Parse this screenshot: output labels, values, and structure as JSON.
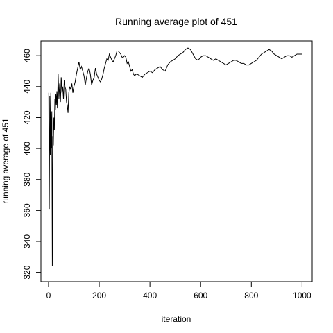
{
  "chart_data": {
    "type": "line",
    "title": "Running average plot of 451",
    "xlabel": "iteration",
    "ylabel": "running average of 451",
    "xlim": [
      0,
      1000
    ],
    "ylim": [
      320,
      470
    ],
    "x_ticks": [
      0,
      200,
      400,
      600,
      800,
      1000
    ],
    "y_ticks": [
      320,
      340,
      360,
      380,
      400,
      420,
      440,
      460
    ],
    "grid": false,
    "legend": "none",
    "line_color": "#000000",
    "series": [
      {
        "x": [
          1,
          3,
          5,
          7,
          9,
          11,
          13,
          15,
          17,
          19,
          21,
          23,
          25,
          27,
          29,
          31,
          33,
          35,
          38,
          41,
          44,
          47,
          50,
          53,
          56,
          59,
          62,
          65,
          68,
          71,
          74,
          77,
          80,
          84,
          88,
          92,
          96,
          100,
          105,
          110,
          115,
          120,
          125,
          130,
          135,
          140,
          145,
          150,
          155,
          160,
          165,
          170,
          175,
          180,
          185,
          190,
          195,
          200,
          205,
          210,
          215,
          220,
          225,
          230,
          235,
          240,
          245,
          250,
          255,
          260,
          265,
          270,
          275,
          280,
          285,
          290,
          295,
          300,
          305,
          310,
          315,
          320,
          325,
          330,
          335,
          340,
          345,
          350,
          360,
          370,
          380,
          390,
          400,
          410,
          420,
          430,
          440,
          450,
          460,
          470,
          480,
          490,
          500,
          510,
          520,
          530,
          540,
          550,
          560,
          570,
          580,
          590,
          600,
          610,
          620,
          630,
          640,
          650,
          660,
          670,
          680,
          690,
          700,
          710,
          720,
          730,
          740,
          750,
          760,
          770,
          780,
          790,
          800,
          810,
          820,
          830,
          840,
          850,
          860,
          870,
          880,
          890,
          900,
          910,
          920,
          930,
          940,
          950,
          960,
          970,
          980,
          990,
          1000
        ],
        "y": [
          436,
          361,
          434,
          396,
          436,
          400,
          424,
          324,
          408,
          402,
          420,
          412,
          432,
          425,
          435,
          428,
          437,
          426,
          448,
          432,
          442,
          430,
          446,
          436,
          440,
          432,
          444,
          440,
          438,
          430,
          428,
          423,
          436,
          440,
          438,
          442,
          436,
          440,
          443,
          448,
          452,
          456,
          451,
          453,
          450,
          447,
          441,
          446,
          450,
          452,
          448,
          441,
          444,
          446,
          452,
          448,
          446,
          444,
          443,
          445,
          448,
          452,
          455,
          458,
          457,
          461,
          459,
          457,
          456,
          458,
          460,
          463,
          463,
          462,
          461,
          459,
          459,
          460,
          459,
          455,
          456,
          453,
          450,
          451,
          448,
          447,
          448,
          448,
          447,
          446,
          448,
          449,
          450,
          449,
          451,
          452,
          453,
          451,
          450,
          454,
          456,
          457,
          458,
          460,
          461,
          462,
          464,
          465,
          464,
          461,
          458,
          457,
          459,
          460,
          460,
          459,
          458,
          457,
          458,
          457,
          456,
          455,
          454,
          455,
          456,
          457,
          457,
          456,
          455,
          455,
          454,
          454,
          455,
          456,
          457,
          459,
          461,
          462,
          463,
          464,
          463,
          461,
          460,
          459,
          458,
          459,
          460,
          460,
          459,
          460,
          461,
          461,
          461
        ]
      }
    ]
  }
}
